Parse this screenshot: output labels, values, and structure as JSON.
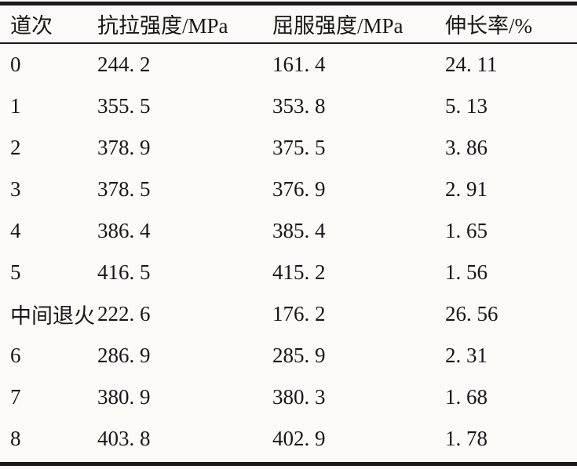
{
  "table": {
    "columns": [
      "道次",
      "抗拉强度/MPa",
      "屈服强度/MPa",
      "伸长率/%"
    ],
    "column_keys": [
      "pass",
      "tensile-strength",
      "yield-strength",
      "elongation"
    ],
    "rows": [
      [
        "0",
        "244. 2",
        "161. 4",
        "24. 11"
      ],
      [
        "1",
        "355. 5",
        "353. 8",
        "5. 13"
      ],
      [
        "2",
        "378. 9",
        "375. 5",
        "3. 86"
      ],
      [
        "3",
        "378. 5",
        "376. 9",
        "2. 91"
      ],
      [
        "4",
        "386. 4",
        "385. 4",
        "1. 65"
      ],
      [
        "5",
        "416. 5",
        "415. 2",
        "1. 56"
      ],
      [
        "中间退火",
        "222. 6",
        "176. 2",
        "26. 56"
      ],
      [
        "6",
        "286. 9",
        "285. 9",
        "2. 31"
      ],
      [
        "7",
        "380. 9",
        "380. 3",
        "1. 68"
      ],
      [
        "8",
        "403. 8",
        "402. 9",
        "1. 78"
      ]
    ]
  },
  "colors": {
    "text": "#171717",
    "rule": "#1a1a1a",
    "paper": "#fbfaf7"
  }
}
